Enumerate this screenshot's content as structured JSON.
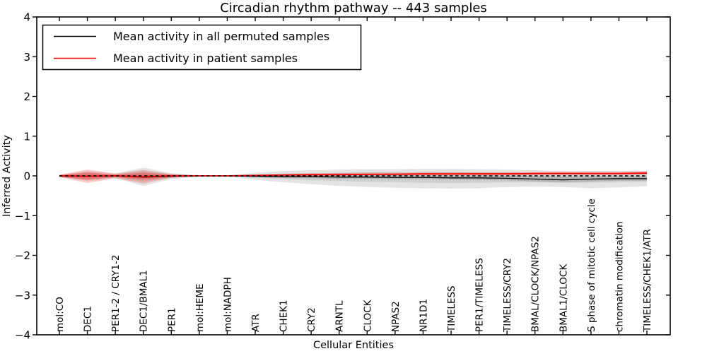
{
  "chart_data": {
    "type": "line",
    "title": "Circadian rhythm pathway -- 443 samples",
    "xlabel": "Cellular Entities",
    "ylabel": "Inferred Activity",
    "ylim": [
      -4,
      4
    ],
    "yticks": [
      4,
      3,
      2,
      1,
      0,
      -1,
      -2,
      -3,
      -4
    ],
    "grid": false,
    "legend_position": "upper left",
    "categories": [
      "mol:CO",
      "DEC1",
      "PER1-2 / CRY1-2",
      "DEC1/BMAL1",
      "PER1",
      "mol:HEME",
      "mol:NADPH",
      "ATR",
      "CHEK1",
      "CRY2",
      "ARNTL",
      "CLOCK",
      "NPAS2",
      "NR1D1",
      "TIMELESS",
      "PER1/TIMELESS",
      "TIMELESS/CRY2",
      "BMAL/CLOCK/NPAS2",
      "BMAL1/CLOCK",
      "S phase of mitotic cell cycle",
      "chromatin modification",
      "TIMELESS/CHEK1/ATR"
    ],
    "series": [
      {
        "name": "Mean activity in all permuted samples",
        "color": "#000000",
        "style": "solid",
        "values": [
          0,
          -0.01,
          0,
          -0.03,
          -0.01,
          0,
          0,
          -0.01,
          -0.02,
          -0.02,
          -0.03,
          -0.03,
          -0.04,
          -0.04,
          -0.05,
          -0.05,
          -0.06,
          -0.08,
          -0.1,
          -0.08,
          -0.07,
          -0.07
        ]
      },
      {
        "name": "Mean activity in patient samples",
        "color": "#ff0000",
        "style": "solid",
        "values": [
          0,
          -0.01,
          0,
          -0.02,
          0,
          0,
          0,
          0.01,
          0.02,
          0.03,
          0.03,
          0.04,
          0.04,
          0.05,
          0.05,
          0.05,
          0.05,
          0.06,
          0.06,
          0.06,
          0.06,
          0.07
        ]
      }
    ],
    "reference_line": {
      "value": 0,
      "color": "#000000",
      "style": "dashed"
    },
    "bands": [
      {
        "name": "permuted-outer",
        "color": "#e4e4e4",
        "upper": [
          0.03,
          0.12,
          0.06,
          0.21,
          0.07,
          0.02,
          0.02,
          0.08,
          0.12,
          0.14,
          0.16,
          0.17,
          0.17,
          0.18,
          0.18,
          0.17,
          0.16,
          0.14,
          0.12,
          0.13,
          0.13,
          0.13
        ],
        "lower": [
          -0.03,
          -0.13,
          -0.06,
          -0.25,
          -0.08,
          -0.02,
          -0.02,
          -0.1,
          -0.16,
          -0.21,
          -0.25,
          -0.28,
          -0.3,
          -0.31,
          -0.32,
          -0.31,
          -0.28,
          -0.27,
          -0.28,
          -0.31,
          -0.29,
          -0.26
        ]
      },
      {
        "name": "permuted-inner",
        "color": "#cfcfcf",
        "upper": [
          0.02,
          0.07,
          0.04,
          0.12,
          0.04,
          0.01,
          0.01,
          0.04,
          0.06,
          0.07,
          0.08,
          0.09,
          0.09,
          0.1,
          0.1,
          0.09,
          0.09,
          0.08,
          0.06,
          0.07,
          0.07,
          0.07
        ],
        "lower": [
          -0.02,
          -0.08,
          -0.04,
          -0.14,
          -0.05,
          -0.01,
          -0.01,
          -0.05,
          -0.08,
          -0.11,
          -0.13,
          -0.15,
          -0.16,
          -0.17,
          -0.18,
          -0.17,
          -0.16,
          -0.16,
          -0.17,
          -0.17,
          -0.16,
          -0.15
        ]
      },
      {
        "name": "permuted-core",
        "color": "#b2b2b2",
        "upper": [
          0.01,
          0.02,
          0.01,
          0.02,
          0.01,
          0.005,
          0.005,
          0.01,
          0.01,
          0.01,
          0.01,
          0.01,
          0.01,
          0.01,
          0.01,
          0.01,
          0.01,
          0.0,
          -0.02,
          -0.01,
          -0.01,
          -0.01
        ],
        "lower": [
          -0.01,
          -0.03,
          -0.01,
          -0.06,
          -0.02,
          -0.005,
          -0.005,
          -0.03,
          -0.05,
          -0.06,
          -0.07,
          -0.07,
          -0.08,
          -0.08,
          -0.09,
          -0.1,
          -0.11,
          -0.14,
          -0.16,
          -0.14,
          -0.12,
          -0.12
        ]
      },
      {
        "name": "patient-band",
        "color": "rgba(255,0,0,0.20)",
        "upper": [
          0.03,
          0.16,
          0.06,
          0.15,
          0.05,
          0.01,
          0.01,
          0.03,
          0.05,
          0.06,
          0.07,
          0.08,
          0.08,
          0.08,
          0.09,
          0.09,
          0.09,
          0.1,
          0.11,
          0.1,
          0.1,
          0.12
        ],
        "lower": [
          -0.03,
          -0.18,
          -0.06,
          -0.19,
          -0.05,
          -0.01,
          -0.01,
          -0.01,
          0.0,
          0.0,
          0.01,
          0.01,
          0.01,
          0.02,
          0.02,
          0.02,
          0.02,
          0.02,
          0.03,
          0.03,
          0.03,
          0.04
        ]
      },
      {
        "name": "patient-core",
        "color": "rgba(255,0,0,0.28)",
        "upper": [
          0.02,
          0.09,
          0.03,
          0.08,
          0.03,
          0.005,
          0.005,
          0.02,
          0.03,
          0.04,
          0.05,
          0.05,
          0.06,
          0.06,
          0.06,
          0.07,
          0.07,
          0.07,
          0.08,
          0.07,
          0.07,
          0.09
        ],
        "lower": [
          -0.02,
          -0.1,
          -0.03,
          -0.1,
          -0.03,
          -0.005,
          -0.005,
          0.0,
          0.01,
          0.01,
          0.02,
          0.02,
          0.03,
          0.03,
          0.03,
          0.04,
          0.04,
          0.04,
          0.05,
          0.04,
          0.04,
          0.05
        ]
      }
    ]
  }
}
